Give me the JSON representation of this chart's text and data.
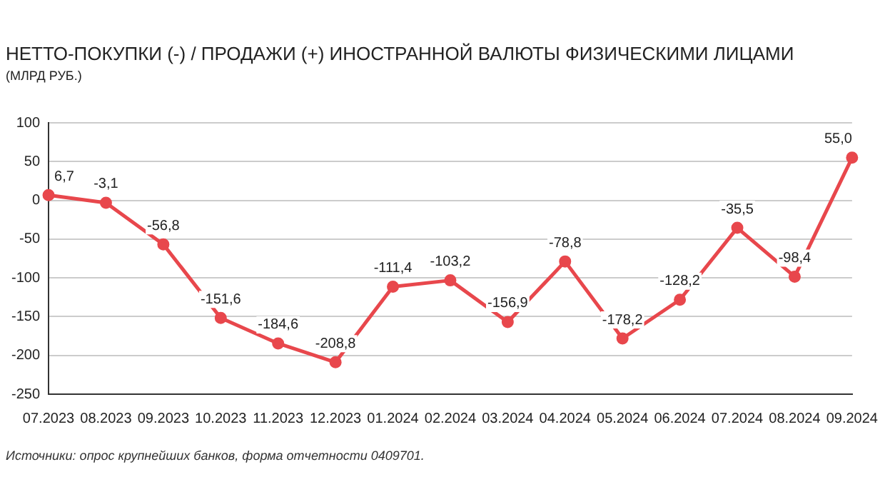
{
  "chart_data": {
    "type": "line",
    "title": "НЕТТО-ПОКУПКИ (-) / ПРОДАЖИ (+) ИНОСТРАННОЙ ВАЛЮТЫ ФИЗИЧЕСКИМИ ЛИЦАМИ",
    "subtitle": "(МЛРД РУБ.)",
    "categories": [
      "07.2023",
      "08.2023",
      "09.2023",
      "10.2023",
      "11.2023",
      "12.2023",
      "01.2024",
      "02.2024",
      "03.2024",
      "04.2024",
      "05.2024",
      "06.2024",
      "07.2024",
      "08.2024",
      "09.2024"
    ],
    "series": [
      {
        "color": "#e8474c",
        "values": [
          6.7,
          -3.1,
          -56.8,
          -151.6,
          -184.6,
          -208.8,
          -111.4,
          -103.2,
          -156.9,
          -78.8,
          -178.2,
          -128.2,
          -35.5,
          -98.4,
          55.0
        ],
        "value_labels": [
          "6,7",
          "-3,1",
          "-56,8",
          "-151,6",
          "-184,6",
          "-208,8",
          "-111,4",
          "-103,2",
          "-156,9",
          "-78,8",
          "-178,2",
          "-128,2",
          "-35,5",
          "-98,4",
          "55,0"
        ]
      }
    ],
    "ylim": [
      -250,
      100
    ],
    "yticks": [
      -250,
      -200,
      -150,
      -100,
      -50,
      0,
      50,
      100
    ],
    "grid": "y",
    "legend": false,
    "marker": "circle",
    "line_style": "solid",
    "annotations": [
      "Источники: опрос крупнейших банков, форма отчетности 0409701."
    ]
  }
}
